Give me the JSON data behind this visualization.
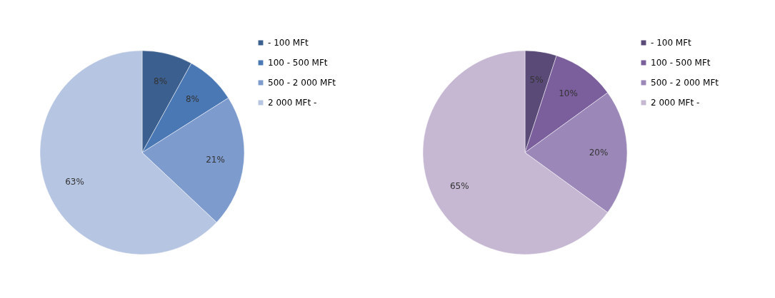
{
  "chart_data": [
    {
      "type": "pie",
      "categories": [
        "- 100 MFt",
        "100 - 500 MFt",
        "500 - 2 000 MFt",
        "2 000 MFt -"
      ],
      "values": [
        8,
        8,
        21,
        63
      ],
      "value_labels": [
        "8%",
        "8%",
        "21%",
        "63%"
      ],
      "colors": [
        "#3b5f8f",
        "#4a78b5",
        "#7e9bce",
        "#b6c5e1"
      ],
      "legend": "top right"
    },
    {
      "type": "pie",
      "categories": [
        "- 100 MFt",
        "100 - 500 MFt",
        "500 - 2 000 MFt",
        "2 000 MFt -"
      ],
      "values": [
        5,
        10,
        20,
        65
      ],
      "value_labels": [
        "5%",
        "10%",
        "20%",
        "65%"
      ],
      "colors": [
        "#5a4a78",
        "#7b5e9c",
        "#9b88b8",
        "#c6b8d3"
      ],
      "legend": "top right"
    }
  ]
}
